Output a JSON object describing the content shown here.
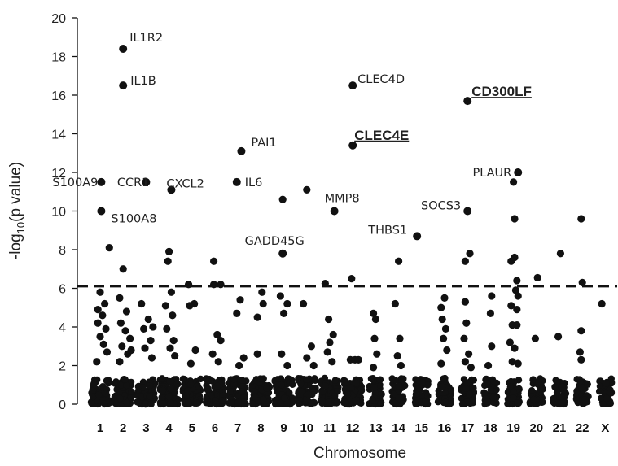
{
  "chart_data": {
    "type": "scatter",
    "title": "",
    "xlabel": "Chromosome",
    "ylabel": "-log10(p value)",
    "ylabel_main": "-log",
    "ylabel_sub": "10",
    "ylabel_rest": "(p value)",
    "ylim": [
      0,
      20
    ],
    "yticks": [
      "0",
      "2",
      "4",
      "6",
      "8",
      "10",
      "12",
      "14",
      "16",
      "18",
      "20"
    ],
    "categories": [
      "1",
      "2",
      "3",
      "4",
      "5",
      "6",
      "7",
      "8",
      "9",
      "10",
      "11",
      "12",
      "13",
      "14",
      "15",
      "16",
      "17",
      "18",
      "19",
      "20",
      "21",
      "22",
      "X"
    ],
    "threshold": 6.1,
    "grid": false,
    "labeled_points": [
      {
        "chrom": "2",
        "x": 2.0,
        "y": 18.4,
        "label": "IL1R2",
        "emphasis": false
      },
      {
        "chrom": "2",
        "x": 2.0,
        "y": 16.5,
        "label": "IL1B",
        "emphasis": false
      },
      {
        "chrom": "1",
        "x": 1.05,
        "y": 11.5,
        "label": "S100A9",
        "emphasis": false
      },
      {
        "chrom": "1",
        "x": 1.05,
        "y": 10.0,
        "label": "S100A8",
        "emphasis": false
      },
      {
        "chrom": "3",
        "x": 3.0,
        "y": 11.5,
        "label": "CCR1",
        "emphasis": false
      },
      {
        "chrom": "4",
        "x": 4.1,
        "y": 11.1,
        "label": "CXCL2",
        "emphasis": false
      },
      {
        "chrom": "7",
        "x": 7.15,
        "y": 13.1,
        "label": "PAI1",
        "emphasis": false
      },
      {
        "chrom": "7",
        "x": 6.95,
        "y": 11.5,
        "label": "IL6",
        "emphasis": false
      },
      {
        "chrom": "9",
        "x": 8.95,
        "y": 7.8,
        "label": "GADD45G",
        "emphasis": false
      },
      {
        "chrom": "11",
        "x": 11.2,
        "y": 10.0,
        "label": "MMP8",
        "emphasis": false
      },
      {
        "chrom": "12",
        "x": 12.0,
        "y": 16.5,
        "label": "CLEC4D",
        "emphasis": false
      },
      {
        "chrom": "12",
        "x": 12.0,
        "y": 13.4,
        "label": "CLEC4E",
        "emphasis": true
      },
      {
        "chrom": "15",
        "x": 14.8,
        "y": 8.7,
        "label": "THBS1",
        "emphasis": false
      },
      {
        "chrom": "17",
        "x": 17.0,
        "y": 15.7,
        "label": "CD300LF",
        "emphasis": true
      },
      {
        "chrom": "17",
        "x": 17.0,
        "y": 10.0,
        "label": "SOCS3",
        "emphasis": false
      },
      {
        "chrom": "19",
        "x": 19.2,
        "y": 12.0,
        "label": "PLAUR",
        "emphasis": false
      }
    ],
    "points": [
      {
        "x": 1.0,
        "y": 5.8
      },
      {
        "x": 1.2,
        "y": 5.2
      },
      {
        "x": 0.9,
        "y": 4.9
      },
      {
        "x": 1.1,
        "y": 4.6
      },
      {
        "x": 0.9,
        "y": 4.2
      },
      {
        "x": 1.25,
        "y": 3.9
      },
      {
        "x": 1.0,
        "y": 3.5
      },
      {
        "x": 1.15,
        "y": 3.1
      },
      {
        "x": 1.3,
        "y": 2.7
      },
      {
        "x": 0.85,
        "y": 2.2
      },
      {
        "x": 1.4,
        "y": 8.1
      },
      {
        "x": 2.0,
        "y": 7.0
      },
      {
        "x": 1.85,
        "y": 5.5
      },
      {
        "x": 2.15,
        "y": 4.8
      },
      {
        "x": 1.9,
        "y": 4.2
      },
      {
        "x": 2.1,
        "y": 3.8
      },
      {
        "x": 2.3,
        "y": 3.4
      },
      {
        "x": 1.95,
        "y": 3.0
      },
      {
        "x": 2.2,
        "y": 2.6
      },
      {
        "x": 1.85,
        "y": 2.2
      },
      {
        "x": 2.35,
        "y": 2.8
      },
      {
        "x": 2.8,
        "y": 5.2
      },
      {
        "x": 3.1,
        "y": 4.4
      },
      {
        "x": 2.9,
        "y": 3.9
      },
      {
        "x": 3.2,
        "y": 3.3
      },
      {
        "x": 2.95,
        "y": 2.9
      },
      {
        "x": 3.25,
        "y": 2.4
      },
      {
        "x": 3.3,
        "y": 4.0
      },
      {
        "x": 4.0,
        "y": 7.9
      },
      {
        "x": 3.95,
        "y": 7.4
      },
      {
        "x": 4.1,
        "y": 5.8
      },
      {
        "x": 3.85,
        "y": 5.1
      },
      {
        "x": 4.15,
        "y": 4.6
      },
      {
        "x": 3.9,
        "y": 3.9
      },
      {
        "x": 4.2,
        "y": 3.3
      },
      {
        "x": 4.05,
        "y": 2.9
      },
      {
        "x": 4.25,
        "y": 2.5
      },
      {
        "x": 4.85,
        "y": 6.2
      },
      {
        "x": 4.9,
        "y": 5.1
      },
      {
        "x": 5.1,
        "y": 5.2
      },
      {
        "x": 5.15,
        "y": 2.8
      },
      {
        "x": 4.95,
        "y": 2.1
      },
      {
        "x": 5.95,
        "y": 7.4
      },
      {
        "x": 5.95,
        "y": 6.2
      },
      {
        "x": 6.25,
        "y": 6.2
      },
      {
        "x": 6.1,
        "y": 3.6
      },
      {
        "x": 6.25,
        "y": 3.3
      },
      {
        "x": 5.9,
        "y": 2.6
      },
      {
        "x": 6.15,
        "y": 2.2
      },
      {
        "x": 7.1,
        "y": 5.4
      },
      {
        "x": 6.95,
        "y": 4.7
      },
      {
        "x": 7.25,
        "y": 2.4
      },
      {
        "x": 7.05,
        "y": 2.0
      },
      {
        "x": 8.05,
        "y": 5.8
      },
      {
        "x": 8.1,
        "y": 5.2
      },
      {
        "x": 7.85,
        "y": 4.5
      },
      {
        "x": 7.85,
        "y": 2.6
      },
      {
        "x": 8.95,
        "y": 10.6
      },
      {
        "x": 8.85,
        "y": 5.6
      },
      {
        "x": 9.15,
        "y": 5.2
      },
      {
        "x": 9.0,
        "y": 4.7
      },
      {
        "x": 8.9,
        "y": 2.6
      },
      {
        "x": 9.15,
        "y": 2.0
      },
      {
        "x": 10.0,
        "y": 11.1
      },
      {
        "x": 9.85,
        "y": 5.2
      },
      {
        "x": 10.2,
        "y": 3.0
      },
      {
        "x": 10.0,
        "y": 2.4
      },
      {
        "x": 10.3,
        "y": 2.0
      },
      {
        "x": 10.8,
        "y": 6.25
      },
      {
        "x": 10.95,
        "y": 4.4
      },
      {
        "x": 11.15,
        "y": 3.6
      },
      {
        "x": 11.0,
        "y": 3.2
      },
      {
        "x": 10.9,
        "y": 2.7
      },
      {
        "x": 11.1,
        "y": 2.2
      },
      {
        "x": 11.95,
        "y": 6.5
      },
      {
        "x": 11.9,
        "y": 2.3
      },
      {
        "x": 12.1,
        "y": 2.3
      },
      {
        "x": 12.25,
        "y": 2.3
      },
      {
        "x": 12.9,
        "y": 4.7
      },
      {
        "x": 13.0,
        "y": 4.4
      },
      {
        "x": 12.95,
        "y": 3.4
      },
      {
        "x": 13.05,
        "y": 2.6
      },
      {
        "x": 12.9,
        "y": 1.9
      },
      {
        "x": 14.0,
        "y": 7.4
      },
      {
        "x": 13.85,
        "y": 5.2
      },
      {
        "x": 14.05,
        "y": 3.4
      },
      {
        "x": 13.95,
        "y": 2.5
      },
      {
        "x": 14.1,
        "y": 2.0
      },
      {
        "x": 16.0,
        "y": 5.5
      },
      {
        "x": 15.85,
        "y": 5.0
      },
      {
        "x": 15.9,
        "y": 4.4
      },
      {
        "x": 16.05,
        "y": 3.9
      },
      {
        "x": 15.95,
        "y": 3.4
      },
      {
        "x": 16.1,
        "y": 2.8
      },
      {
        "x": 15.85,
        "y": 2.1
      },
      {
        "x": 16.9,
        "y": 7.4
      },
      {
        "x": 17.1,
        "y": 7.8
      },
      {
        "x": 16.9,
        "y": 5.3
      },
      {
        "x": 16.95,
        "y": 4.2
      },
      {
        "x": 16.85,
        "y": 3.4
      },
      {
        "x": 17.05,
        "y": 2.6
      },
      {
        "x": 16.9,
        "y": 2.2
      },
      {
        "x": 17.15,
        "y": 1.9
      },
      {
        "x": 18.05,
        "y": 5.6
      },
      {
        "x": 18.0,
        "y": 4.7
      },
      {
        "x": 18.05,
        "y": 3.0
      },
      {
        "x": 17.9,
        "y": 2.0
      },
      {
        "x": 19.0,
        "y": 11.5
      },
      {
        "x": 19.05,
        "y": 9.6
      },
      {
        "x": 18.9,
        "y": 7.4
      },
      {
        "x": 19.05,
        "y": 7.6
      },
      {
        "x": 19.15,
        "y": 6.4
      },
      {
        "x": 19.1,
        "y": 5.9
      },
      {
        "x": 19.2,
        "y": 5.6
      },
      {
        "x": 18.9,
        "y": 5.1
      },
      {
        "x": 19.15,
        "y": 4.9
      },
      {
        "x": 18.95,
        "y": 4.1
      },
      {
        "x": 19.15,
        "y": 4.1
      },
      {
        "x": 18.85,
        "y": 3.2
      },
      {
        "x": 19.05,
        "y": 2.9
      },
      {
        "x": 18.95,
        "y": 2.2
      },
      {
        "x": 19.2,
        "y": 2.1
      },
      {
        "x": 20.05,
        "y": 6.55
      },
      {
        "x": 19.95,
        "y": 3.4
      },
      {
        "x": 21.05,
        "y": 7.8
      },
      {
        "x": 20.95,
        "y": 3.5
      },
      {
        "x": 21.95,
        "y": 9.6
      },
      {
        "x": 22.0,
        "y": 6.3
      },
      {
        "x": 21.95,
        "y": 3.8
      },
      {
        "x": 21.9,
        "y": 2.7
      },
      {
        "x": 21.95,
        "y": 2.3
      },
      {
        "x": 22.85,
        "y": 5.2
      }
    ]
  }
}
